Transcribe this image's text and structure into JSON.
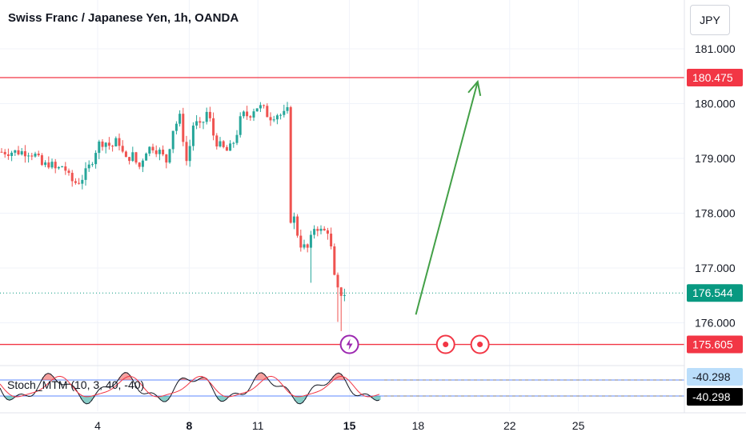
{
  "header": {
    "title": "Swiss Franc / Japanese Yen, 1h, OANDA",
    "currency_button": "JPY"
  },
  "indicator": {
    "label": "Stoch_MTM (10, 3, 40, -40)",
    "badge_upper": "-40.298",
    "badge_lower": "-40.298"
  },
  "colors": {
    "up": "#26a69a",
    "down": "#ef5350",
    "level_line": "#f23645",
    "arrow": "#43a047",
    "last_price": "#089981"
  },
  "chart_data": {
    "type": "candlestick",
    "title": "Swiss Franc / Japanese Yen, 1h, OANDA",
    "y_ticks": [
      181.0,
      180.0,
      179.0,
      178.0,
      177.0,
      176.0
    ],
    "y_tick_labels": [
      "181.000",
      "180.000",
      "179.000",
      "178.000",
      "177.000",
      "176.000"
    ],
    "ylim": [
      175.3,
      181.5
    ],
    "x_ticks": [
      {
        "label": "4",
        "day": 4,
        "bold": false
      },
      {
        "label": "8",
        "day": 8,
        "bold": true
      },
      {
        "label": "11",
        "day": 11,
        "bold": false
      },
      {
        "label": "15",
        "day": 15,
        "bold": true
      },
      {
        "label": "18",
        "day": 18,
        "bold": false
      },
      {
        "label": "22",
        "day": 22,
        "bold": false
      },
      {
        "label": "25",
        "day": 25,
        "bold": false
      }
    ],
    "horizontal_levels": [
      {
        "value": 180.475,
        "label": "180.475"
      },
      {
        "value": 175.605,
        "label": "175.605"
      }
    ],
    "last_price": {
      "value": 176.544,
      "label": "176.544"
    },
    "arrow": {
      "from": {
        "day": 17.9,
        "price": 176.15
      },
      "to": {
        "day": 20.6,
        "price": 180.4
      }
    },
    "events": [
      {
        "day": 15.0,
        "type": "lightning"
      },
      {
        "day": 19.2,
        "type": "dot"
      },
      {
        "day": 20.7,
        "type": "dot"
      }
    ],
    "series": [
      {
        "name": "price",
        "points": [
          [
            1.0,
            179.12
          ],
          [
            1.3,
            179.05
          ],
          [
            1.6,
            178.85
          ],
          [
            1.9,
            178.92
          ],
          [
            2.2,
            178.78
          ],
          [
            2.5,
            178.88
          ],
          [
            2.8,
            178.6
          ],
          [
            3.1,
            178.55
          ],
          [
            3.4,
            178.68
          ],
          [
            3.7,
            178.9
          ],
          [
            4.0,
            179.25
          ],
          [
            4.3,
            179.32
          ],
          [
            4.6,
            179.2
          ],
          [
            4.9,
            179.35
          ],
          [
            5.2,
            178.95
          ],
          [
            5.5,
            179.08
          ],
          [
            5.8,
            178.82
          ],
          [
            6.1,
            179.15
          ],
          [
            6.4,
            179.22
          ],
          [
            6.7,
            179.12
          ],
          [
            7.0,
            178.95
          ],
          [
            7.3,
            179.55
          ],
          [
            7.6,
            179.75
          ],
          [
            7.9,
            178.9
          ],
          [
            8.2,
            179.68
          ],
          [
            8.5,
            179.55
          ],
          [
            8.8,
            179.88
          ],
          [
            9.1,
            179.35
          ],
          [
            9.4,
            179.2
          ],
          [
            9.7,
            179.12
          ],
          [
            10.0,
            179.35
          ],
          [
            10.3,
            179.8
          ],
          [
            10.6,
            179.78
          ],
          [
            10.9,
            179.95
          ],
          [
            11.2,
            179.92
          ],
          [
            11.5,
            179.75
          ],
          [
            11.8,
            179.82
          ],
          [
            12.1,
            179.78
          ],
          [
            12.4,
            179.9
          ],
          [
            12.6,
            177.8
          ],
          [
            12.9,
            177.4
          ],
          [
            13.2,
            177.35
          ],
          [
            13.5,
            177.8
          ],
          [
            13.8,
            177.65
          ],
          [
            14.1,
            177.7
          ],
          [
            14.4,
            176.6
          ],
          [
            14.7,
            176.52
          ],
          [
            14.9,
            176.55
          ]
        ]
      }
    ]
  }
}
